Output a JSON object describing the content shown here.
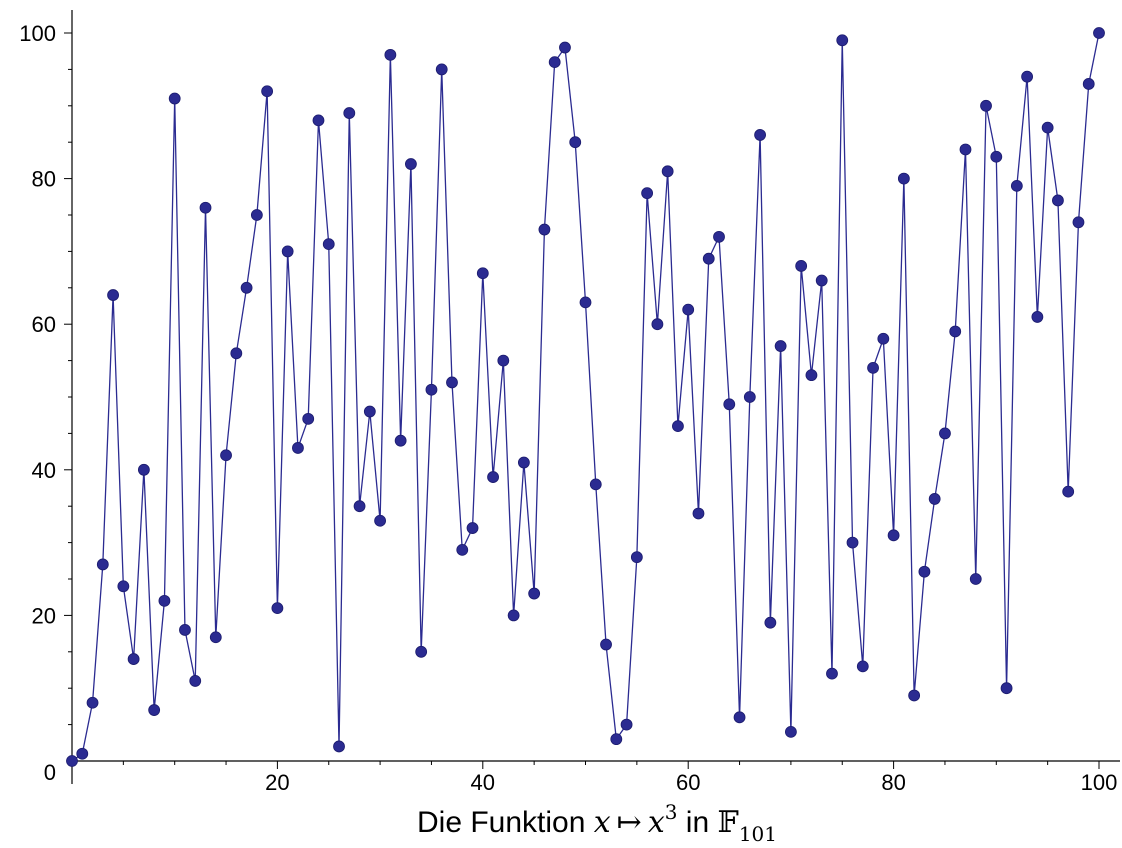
{
  "chart_data": {
    "type": "line",
    "markers": true,
    "title": "",
    "caption": {
      "prefix": "Die Funktion ",
      "x_var": "x",
      "maps_to": "↦",
      "base": "x",
      "exponent": "3",
      "middle": " in ",
      "field": "𝔽",
      "field_sub": "101"
    },
    "xlim": [
      0,
      101
    ],
    "ylim": [
      0,
      101
    ],
    "x_ticks": [
      20,
      40,
      60,
      80,
      100
    ],
    "y_ticks": [
      20,
      40,
      60,
      80,
      100
    ],
    "origin_label": "0",
    "grid": false,
    "colors": {
      "series": "#2b2b91",
      "axis": "#000000"
    },
    "series": [
      {
        "x": [
          0,
          1,
          2,
          3,
          4,
          5,
          6,
          7,
          8,
          9,
          10,
          11,
          12,
          13,
          14,
          15,
          16,
          17,
          18,
          19,
          20,
          21,
          22,
          23,
          24,
          25,
          26,
          27,
          28,
          29,
          30,
          31,
          32,
          33,
          34,
          35,
          36,
          37,
          38,
          39,
          40,
          41,
          42,
          43,
          44,
          45,
          46,
          47,
          48,
          49,
          50,
          51,
          52,
          53,
          54,
          55,
          56,
          57,
          58,
          59,
          60,
          61,
          62,
          63,
          64,
          65,
          66,
          67,
          68,
          69,
          70,
          71,
          72,
          73,
          74,
          75,
          76,
          77,
          78,
          79,
          80,
          81,
          82,
          83,
          84,
          85,
          86,
          87,
          88,
          89,
          90,
          91,
          92,
          93,
          94,
          95,
          96,
          97,
          98,
          99,
          100
        ],
        "y": [
          0,
          1,
          8,
          27,
          64,
          24,
          14,
          40,
          7,
          22,
          91,
          18,
          11,
          76,
          17,
          42,
          56,
          65,
          75,
          92,
          21,
          70,
          43,
          47,
          88,
          71,
          2,
          89,
          35,
          48,
          33,
          97,
          44,
          82,
          15,
          51,
          95,
          52,
          29,
          32,
          67,
          39,
          55,
          20,
          41,
          23,
          73,
          96,
          98,
          85,
          63,
          38,
          16,
          3,
          5,
          28,
          78,
          60,
          81,
          46,
          62,
          34,
          69,
          72,
          49,
          6,
          50,
          86,
          19,
          57,
          4,
          68,
          53,
          66,
          12,
          99,
          30,
          13,
          54,
          58,
          31,
          80,
          9,
          26,
          36,
          45,
          59,
          84,
          25,
          90,
          83,
          10,
          79,
          94,
          61,
          87,
          77,
          37,
          74,
          93,
          100
        ]
      }
    ]
  }
}
